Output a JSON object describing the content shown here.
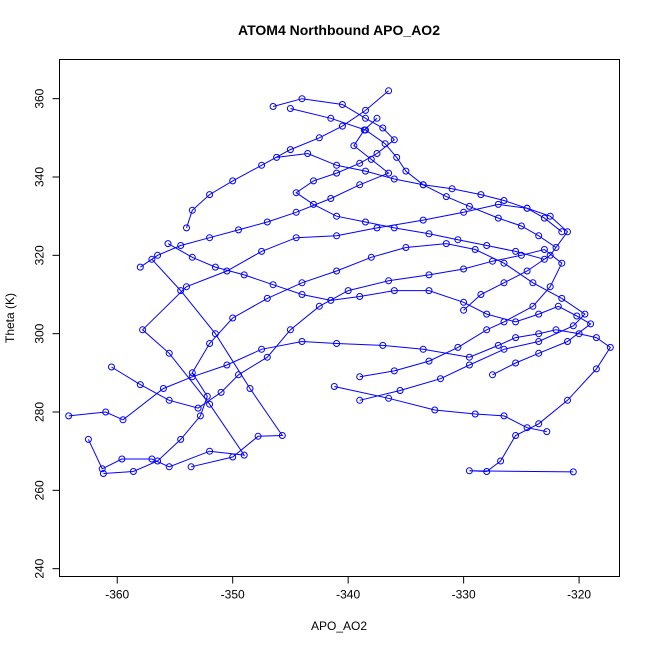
{
  "chart_data": {
    "type": "line",
    "title": "ATOM4 Northbound APO_AO2",
    "xlabel": "APO_AO2",
    "ylabel": "Theta (K)",
    "xlim": [
      -365,
      -316.5
    ],
    "ylim": [
      238,
      370
    ],
    "xticks": [
      -360,
      -350,
      -340,
      -330,
      -320
    ],
    "yticks": [
      240,
      260,
      280,
      300,
      320,
      340,
      360
    ],
    "grid": false,
    "line_color": "#0000ff",
    "marker": "open-circle",
    "series": [
      {
        "points": [
          [
            -364.2,
            279
          ],
          [
            -361,
            280
          ],
          [
            -359.5,
            278
          ],
          [
            -356,
            286
          ],
          [
            -353.5,
            289
          ],
          [
            -350.5,
            292
          ],
          [
            -347.5,
            296
          ],
          [
            -344,
            298
          ],
          [
            -341,
            297.5
          ],
          [
            -337,
            297
          ],
          [
            -333.5,
            296
          ],
          [
            -329.5,
            294
          ],
          [
            -327,
            297
          ],
          [
            -325.5,
            299
          ],
          [
            -323.5,
            300
          ],
          [
            -322,
            301
          ],
          [
            -320,
            300
          ],
          [
            -318.5,
            299
          ],
          [
            -317.3,
            296.5
          ],
          [
            -318.5,
            291
          ],
          [
            -321,
            283
          ],
          [
            -323.5,
            277
          ],
          [
            -325.5,
            274
          ],
          [
            -326.8,
            267.5
          ],
          [
            -328,
            264.8
          ],
          [
            -329.5,
            265
          ],
          [
            -320.5,
            264.7
          ]
        ]
      },
      {
        "points": [
          [
            -362.5,
            273
          ],
          [
            -361.3,
            265.5
          ],
          [
            -359.6,
            268
          ],
          [
            -357,
            268
          ],
          [
            -355.5,
            266
          ],
          [
            -352,
            270
          ],
          [
            -349,
            269
          ],
          [
            -352,
            282
          ],
          [
            -355.5,
            295
          ],
          [
            -357.8,
            301
          ],
          [
            -354,
            312
          ],
          [
            -350.5,
            316
          ],
          [
            -347.5,
            321
          ],
          [
            -344.5,
            324.5
          ],
          [
            -341,
            325
          ],
          [
            -337.5,
            327
          ],
          [
            -333.5,
            329
          ],
          [
            -330,
            331
          ],
          [
            -327,
            333
          ],
          [
            -324.5,
            332
          ],
          [
            -322.5,
            330
          ],
          [
            -321,
            326
          ],
          [
            -322.5,
            320
          ],
          [
            -324.5,
            316
          ],
          [
            -326.5,
            313
          ],
          [
            -328.5,
            310
          ],
          [
            -330,
            306
          ]
        ]
      },
      {
        "points": [
          [
            -361.2,
            264.3
          ],
          [
            -358.6,
            264.8
          ],
          [
            -356.5,
            267.5
          ],
          [
            -354.5,
            273
          ],
          [
            -352.8,
            279
          ],
          [
            -352.2,
            284
          ],
          [
            -353.5,
            290
          ],
          [
            -352,
            297.5
          ],
          [
            -350,
            304
          ],
          [
            -347,
            309
          ],
          [
            -344,
            313
          ],
          [
            -341,
            316
          ],
          [
            -338,
            319.5
          ],
          [
            -335,
            322
          ],
          [
            -331.5,
            323
          ],
          [
            -329,
            321.5
          ],
          [
            -326.5,
            318
          ],
          [
            -324,
            313
          ],
          [
            -321.5,
            309
          ],
          [
            -319.5,
            305
          ],
          [
            -320.5,
            302
          ],
          [
            -323.5,
            298
          ],
          [
            -326.5,
            296
          ],
          [
            -329.5,
            292
          ],
          [
            -332,
            288.5
          ],
          [
            -335.5,
            285.5
          ],
          [
            -339,
            283
          ]
        ]
      },
      {
        "points": [
          [
            -360.5,
            291.5
          ],
          [
            -358,
            287
          ],
          [
            -355.5,
            283
          ],
          [
            -353,
            281
          ],
          [
            -351,
            285
          ],
          [
            -349.5,
            289.5
          ],
          [
            -347,
            294
          ],
          [
            -345,
            301
          ],
          [
            -342.5,
            307
          ],
          [
            -340,
            311
          ],
          [
            -336.5,
            313.5
          ],
          [
            -333,
            315
          ],
          [
            -330,
            316.5
          ],
          [
            -327.5,
            318.5
          ],
          [
            -325,
            320
          ],
          [
            -323,
            321.5
          ],
          [
            -321.5,
            318
          ],
          [
            -322.5,
            312
          ],
          [
            -324,
            307
          ],
          [
            -326.5,
            303
          ],
          [
            -328,
            301
          ],
          [
            -330.5,
            296.5
          ],
          [
            -333,
            293
          ],
          [
            -336,
            290.5
          ],
          [
            -339,
            289
          ]
        ]
      },
      {
        "points": [
          [
            -355.6,
            323
          ],
          [
            -353.5,
            319.5
          ],
          [
            -351.5,
            317
          ],
          [
            -349,
            315
          ],
          [
            -346.5,
            312.5
          ],
          [
            -344,
            310
          ],
          [
            -341.5,
            308.5
          ],
          [
            -339,
            309.5
          ],
          [
            -336,
            311
          ],
          [
            -333,
            311
          ],
          [
            -330,
            308
          ],
          [
            -328,
            305
          ],
          [
            -325.5,
            303
          ],
          [
            -323.5,
            305
          ],
          [
            -321.8,
            307
          ],
          [
            -320.2,
            304.5
          ],
          [
            -319,
            302.5
          ],
          [
            -321,
            298
          ],
          [
            -323.5,
            295
          ],
          [
            -325.5,
            292.5
          ],
          [
            -327.5,
            289.5
          ]
        ]
      },
      {
        "points": [
          [
            -346.5,
            358
          ],
          [
            -344,
            360
          ],
          [
            -340.5,
            358.5
          ],
          [
            -338.5,
            355
          ],
          [
            -337,
            352.5
          ],
          [
            -336,
            349.5
          ],
          [
            -337.5,
            346
          ],
          [
            -339,
            343.5
          ],
          [
            -341,
            341
          ],
          [
            -343,
            339
          ],
          [
            -344.5,
            336
          ],
          [
            -343,
            333
          ],
          [
            -341,
            330
          ],
          [
            -338.5,
            328.5
          ],
          [
            -336,
            327
          ],
          [
            -333,
            325.5
          ],
          [
            -330.5,
            324
          ],
          [
            -328,
            322.5
          ],
          [
            -325.5,
            321
          ],
          [
            -323,
            319
          ]
        ]
      },
      {
        "points": [
          [
            -345,
            357.5
          ],
          [
            -341.5,
            355
          ],
          [
            -338.5,
            352
          ],
          [
            -336.8,
            348.5
          ],
          [
            -335.8,
            345
          ],
          [
            -335,
            341.5
          ],
          [
            -333.5,
            338
          ],
          [
            -331.5,
            335
          ],
          [
            -329.5,
            332.5
          ],
          [
            -327,
            329.5
          ],
          [
            -325,
            327.5
          ],
          [
            -323.5,
            325
          ],
          [
            -322,
            322
          ]
        ]
      },
      {
        "points": [
          [
            -337.5,
            355
          ],
          [
            -338.6,
            352
          ],
          [
            -339.5,
            348
          ],
          [
            -338,
            344.5
          ],
          [
            -336.5,
            341
          ],
          [
            -339,
            338
          ],
          [
            -341.5,
            334.5
          ],
          [
            -344.5,
            331
          ],
          [
            -347,
            328.5
          ],
          [
            -349.5,
            326.5
          ],
          [
            -352,
            324.5
          ],
          [
            -354.5,
            322.5
          ],
          [
            -356.5,
            320
          ],
          [
            -358,
            317
          ]
        ]
      },
      {
        "points": [
          [
            -346.2,
            345
          ],
          [
            -343.5,
            346
          ],
          [
            -341,
            343
          ],
          [
            -338.5,
            341.5
          ],
          [
            -336,
            339.5
          ],
          [
            -333.5,
            338
          ],
          [
            -331,
            337
          ],
          [
            -328.5,
            335.5
          ],
          [
            -326.5,
            334
          ],
          [
            -324.5,
            332
          ],
          [
            -323,
            329.5
          ],
          [
            -321.5,
            326
          ]
        ]
      },
      {
        "points": [
          [
            -336.5,
            362
          ],
          [
            -338.5,
            357
          ],
          [
            -340.5,
            353
          ],
          [
            -342.5,
            350
          ],
          [
            -345,
            347
          ],
          [
            -347.5,
            343
          ],
          [
            -350,
            339
          ],
          [
            -352,
            335.5
          ],
          [
            -353.5,
            331.5
          ],
          [
            -354,
            327
          ]
        ]
      },
      {
        "points": [
          [
            -341.2,
            286.5
          ],
          [
            -336.5,
            283.5
          ],
          [
            -332.5,
            280.5
          ],
          [
            -329,
            279.5
          ],
          [
            -326.5,
            279
          ],
          [
            -324.5,
            276
          ],
          [
            -322.8,
            275
          ]
        ]
      },
      {
        "points": [
          [
            -353.6,
            266
          ],
          [
            -350,
            268.5
          ],
          [
            -347.8,
            273.8
          ],
          [
            -345.7,
            274
          ],
          [
            -348.5,
            286
          ],
          [
            -351.5,
            300
          ],
          [
            -354.5,
            311
          ],
          [
            -357,
            319
          ]
        ]
      }
    ]
  }
}
